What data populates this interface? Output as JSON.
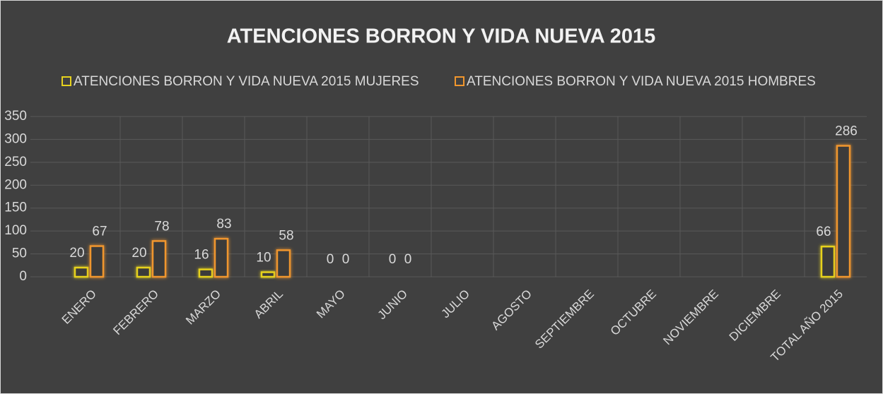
{
  "chart_data": {
    "type": "bar",
    "title": "ATENCIONES BORRON Y VIDA NUEVA 2015",
    "categories": [
      "ENERO",
      "FEBRERO",
      "MARZO",
      "ABRIL",
      "MAYO",
      "JUNIO",
      "JULIO",
      "AGOSTO",
      "SEPTIEMBRE",
      "OCTUBRE",
      "NOVIEMBRE",
      "DICIEMBRE",
      "TOTAL AÑO 2015"
    ],
    "series": [
      {
        "name": "ATENCIONES BORRON Y VIDA NUEVA 2015 MUJERES",
        "color": "#e6d21e",
        "values": [
          20,
          20,
          16,
          10,
          0,
          0,
          null,
          null,
          null,
          null,
          null,
          null,
          66
        ]
      },
      {
        "name": "ATENCIONES BORRON Y VIDA NUEVA 2015 HOMBRES",
        "color": "#f0962d",
        "values": [
          67,
          78,
          83,
          58,
          0,
          0,
          null,
          null,
          null,
          null,
          null,
          null,
          286
        ]
      }
    ],
    "ylim": [
      0,
      350
    ],
    "yticks": [
      0,
      50,
      100,
      150,
      200,
      250,
      300,
      350
    ],
    "grid": true,
    "legend": "top"
  }
}
